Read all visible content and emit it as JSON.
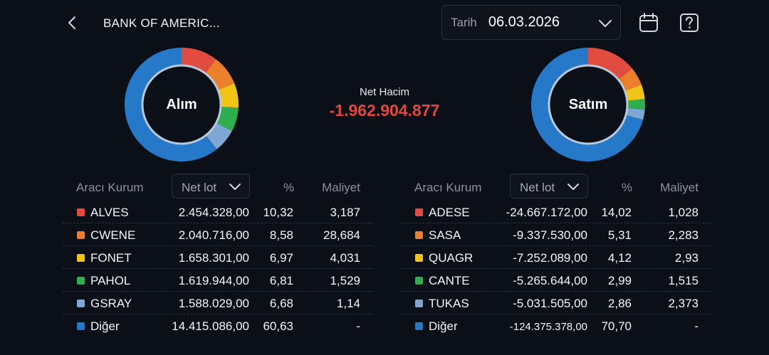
{
  "header": {
    "title": "BANK OF AMERIC...",
    "date_label": "Tarih",
    "date_value": "06.03.2026"
  },
  "summary": {
    "net_label": "Net Hacim",
    "net_value": "-1.962.904.877"
  },
  "colors": {
    "red": "#e24b3f",
    "orange": "#ec7f2b",
    "yellow": "#f2c416",
    "green": "#2fae4e",
    "lightblue": "#7fa7d6",
    "blue": "#2678c8",
    "negative": "#e8453c"
  },
  "buy": {
    "donut_label": "Alım",
    "columns": {
      "broker": "Aracı Kurum",
      "sort": "Net lot",
      "pct": "%",
      "cost": "Maliyet"
    },
    "rows": [
      {
        "name": "ALVES",
        "lot": "2.454.328,00",
        "pct": "10,32",
        "cost": "3,187",
        "color": "#e24b3f"
      },
      {
        "name": "CWENE",
        "lot": "2.040.716,00",
        "pct": "8,58",
        "cost": "28,684",
        "color": "#ec7f2b"
      },
      {
        "name": "FONET",
        "lot": "1.658.301,00",
        "pct": "6,97",
        "cost": "4,031",
        "color": "#f2c416"
      },
      {
        "name": "PAHOL",
        "lot": "1.619.944,00",
        "pct": "6,81",
        "cost": "1,529",
        "color": "#2fae4e"
      },
      {
        "name": "GSRAY",
        "lot": "1.588.029,00",
        "pct": "6,68",
        "cost": "1,14",
        "color": "#7fa7d6"
      },
      {
        "name": "Diğer",
        "lot": "14.415.086,00",
        "pct": "60,63",
        "cost": "-",
        "color": "#2678c8"
      }
    ],
    "share_values": [
      10.32,
      8.58,
      6.97,
      6.81,
      6.68,
      60.63
    ]
  },
  "sell": {
    "donut_label": "Satım",
    "columns": {
      "broker": "Aracı Kurum",
      "sort": "Net lot",
      "pct": "%",
      "cost": "Maliyet"
    },
    "rows": [
      {
        "name": "ADESE",
        "lot": "-24.667.172,00",
        "pct": "14,02",
        "cost": "1,028",
        "color": "#e24b3f"
      },
      {
        "name": "SASA",
        "lot": "-9.337.530,00",
        "pct": "5,31",
        "cost": "2,283",
        "color": "#ec7f2b"
      },
      {
        "name": "QUAGR",
        "lot": "-7.252.089,00",
        "pct": "4,12",
        "cost": "2,93",
        "color": "#f2c416"
      },
      {
        "name": "CANTE",
        "lot": "-5.265.644,00",
        "pct": "2,99",
        "cost": "1,515",
        "color": "#2fae4e"
      },
      {
        "name": "TUKAS",
        "lot": "-5.031.505,00",
        "pct": "2,86",
        "cost": "2,373",
        "color": "#7fa7d6"
      },
      {
        "name": "Diğer",
        "lot": "-124.375.378,00",
        "pct": "70,70",
        "cost": "-",
        "color": "#2678c8"
      }
    ],
    "share_values": [
      14.02,
      5.31,
      4.12,
      2.99,
      2.86,
      70.7
    ]
  },
  "icons": {
    "back": "chevron-left-icon",
    "date_dropdown": "chevron-down-icon",
    "calendar": "calendar-icon",
    "help": "question-mark-icon"
  }
}
